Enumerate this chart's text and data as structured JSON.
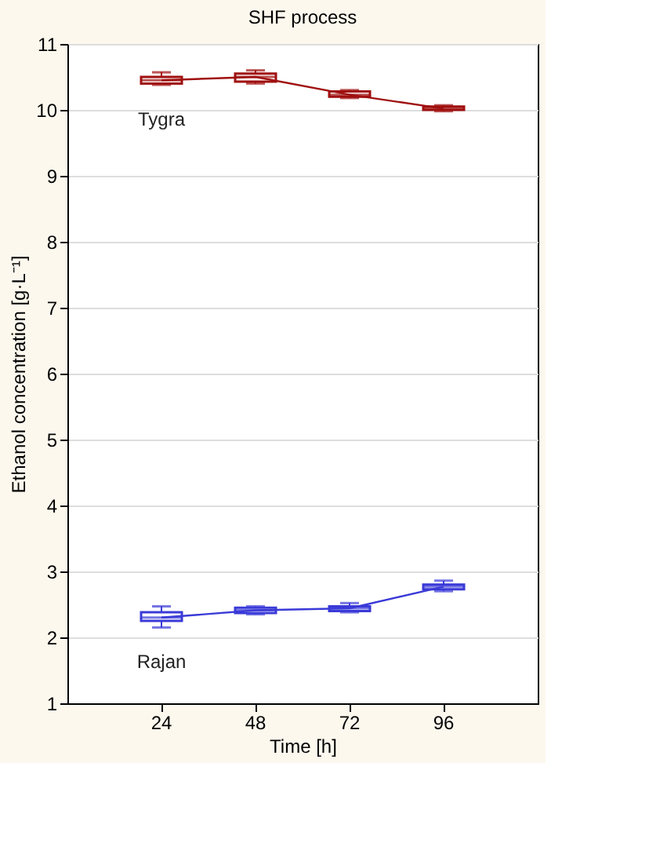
{
  "chart_data": {
    "type": "box",
    "title": "SHF process",
    "xlabel": "Time [h]",
    "ylabel": "Ethanol concentration [g·L⁻¹]",
    "categories": [
      "24",
      "48",
      "72",
      "96"
    ],
    "ylim": [
      1,
      11
    ],
    "yticks": [
      1,
      2,
      3,
      4,
      5,
      6,
      7,
      8,
      9,
      10,
      11
    ],
    "grid": "y",
    "series": [
      {
        "name": "Tygra",
        "color": "#a01010",
        "boxes": [
          {
            "low": 10.38,
            "q1": 10.4,
            "median": 10.45,
            "q3": 10.5,
            "high": 10.57
          },
          {
            "low": 10.4,
            "q1": 10.43,
            "median": 10.5,
            "q3": 10.55,
            "high": 10.6
          },
          {
            "low": 10.18,
            "q1": 10.2,
            "median": 10.23,
            "q3": 10.28,
            "high": 10.3
          },
          {
            "low": 9.98,
            "q1": 10.0,
            "median": 10.02,
            "q3": 10.05,
            "high": 10.07
          }
        ]
      },
      {
        "type": "line",
        "color": "#a01010",
        "values": [
          10.45,
          10.5,
          10.23,
          10.02
        ]
      },
      {
        "name": "Rajan",
        "color": "#3a3ad8",
        "boxes": [
          {
            "low": 2.15,
            "q1": 2.25,
            "median": 2.3,
            "q3": 2.38,
            "high": 2.47
          },
          {
            "low": 2.35,
            "q1": 2.37,
            "median": 2.41,
            "q3": 2.45,
            "high": 2.47
          },
          {
            "low": 2.38,
            "q1": 2.4,
            "median": 2.44,
            "q3": 2.47,
            "high": 2.52
          },
          {
            "low": 2.7,
            "q1": 2.73,
            "median": 2.77,
            "q3": 2.8,
            "high": 2.86
          }
        ]
      },
      {
        "type": "line",
        "color": "#3a3ad8",
        "values": [
          2.3,
          2.41,
          2.44,
          2.77
        ]
      }
    ]
  }
}
